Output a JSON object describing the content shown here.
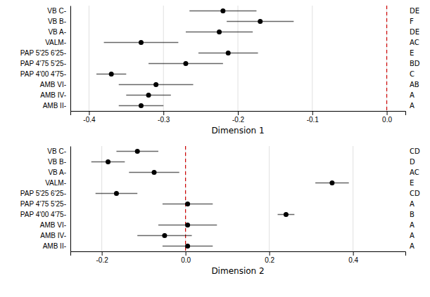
{
  "chart_data": [
    {
      "type": "dot",
      "orientation": "horizontal",
      "categories": [
        "VB C-",
        "VB B-",
        "VB A-",
        "VALM-",
        "PAP 5'25 6'25-",
        "PAP 4'75 5'25-",
        "PAP 4'00 4'75-",
        "AMB VI-",
        "AMB IV-",
        "AMB II-"
      ],
      "values": [
        -0.22,
        -0.17,
        -0.225,
        -0.33,
        -0.213,
        -0.27,
        -0.37,
        -0.31,
        -0.32,
        -0.33
      ],
      "lower": [
        -0.265,
        -0.215,
        -0.27,
        -0.38,
        -0.253,
        -0.32,
        -0.39,
        -0.36,
        -0.35,
        -0.36
      ],
      "upper": [
        -0.175,
        -0.125,
        -0.18,
        -0.28,
        -0.173,
        -0.22,
        -0.35,
        -0.26,
        -0.29,
        -0.3
      ],
      "annotations": [
        "DE",
        "F",
        "DE",
        "AC",
        "E",
        "BD",
        "C",
        "AB",
        "A",
        "A"
      ],
      "reference_line": {
        "value": 0.0,
        "color": "#cc0000"
      },
      "color": "#000000",
      "xlabel": "Dimension 1",
      "xlim": [
        -0.425,
        0.025
      ],
      "xticks": [
        -0.4,
        -0.3,
        -0.2,
        -0.1,
        {
          "value": 0.0,
          "label": "0.0"
        }
      ],
      "grid": true
    },
    {
      "type": "dot",
      "orientation": "horizontal",
      "categories": [
        "VB C-",
        "VB B-",
        "VB A-",
        "VALM-",
        "PAP 5'25 6'25-",
        "PAP 4'75 5'25-",
        "PAP 4'00 4'75-",
        "AMB VI-",
        "AMB IV-",
        "AMB II-"
      ],
      "values": [
        -0.115,
        -0.185,
        -0.075,
        0.35,
        -0.165,
        0.005,
        0.24,
        0.005,
        -0.05,
        0.005
      ],
      "lower": [
        -0.165,
        -0.225,
        -0.135,
        0.31,
        -0.215,
        -0.055,
        0.22,
        -0.065,
        -0.115,
        -0.055
      ],
      "upper": [
        -0.065,
        -0.145,
        -0.015,
        0.39,
        -0.115,
        0.065,
        0.26,
        0.075,
        0.015,
        0.065
      ],
      "annotations": [
        "CD",
        "D",
        "AC",
        "E",
        "CD",
        "A",
        "B",
        "A",
        "A",
        "A"
      ],
      "reference_line": {
        "value": 0.0,
        "color": "#cc0000"
      },
      "color": "#000000",
      "xlabel": "Dimension 2",
      "xlim": [
        -0.275,
        0.525
      ],
      "xticks": [
        -0.2,
        {
          "value": 0.0,
          "label": "0.0"
        },
        0.2,
        0.4
      ],
      "grid": true
    }
  ]
}
